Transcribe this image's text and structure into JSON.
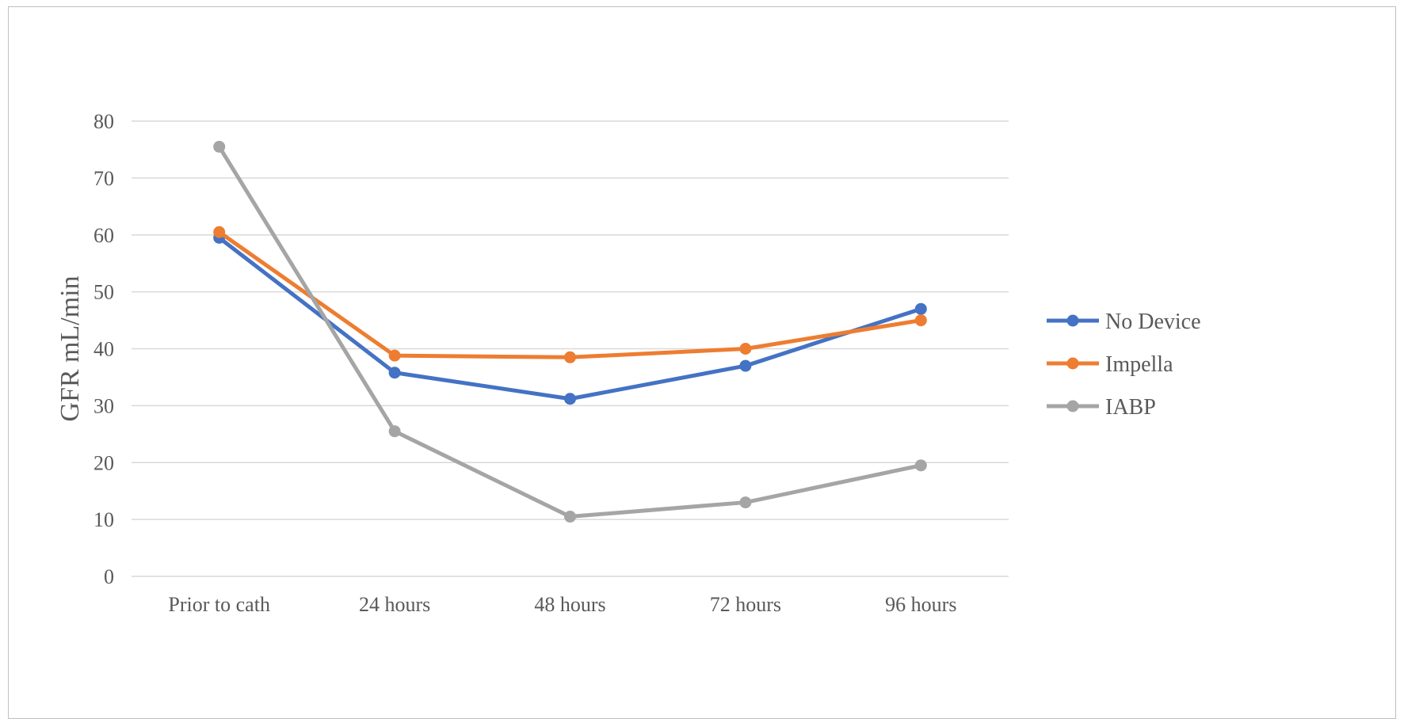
{
  "chart_data": {
    "type": "line",
    "title": "",
    "xlabel": "",
    "ylabel": "GFR mL/min",
    "categories": [
      "Prior to cath",
      "24 hours",
      "48 hours",
      "72 hours",
      "96 hours"
    ],
    "ylim": [
      0,
      80
    ],
    "yticks": [
      "0",
      "10",
      "20",
      "30",
      "40",
      "50",
      "60",
      "70",
      "80"
    ],
    "grid": true,
    "legend_position": "right",
    "series": [
      {
        "name": "No Device",
        "values": [
          59.5,
          35.8,
          31.2,
          37.0,
          47.0
        ],
        "color": "#4472C4"
      },
      {
        "name": "Impella",
        "values": [
          60.5,
          38.8,
          38.5,
          40.0,
          45.0
        ],
        "color": "#ED7D31"
      },
      {
        "name": "IABP",
        "values": [
          75.5,
          25.5,
          10.5,
          13.0,
          19.5
        ],
        "color": "#A5A5A5"
      }
    ]
  }
}
